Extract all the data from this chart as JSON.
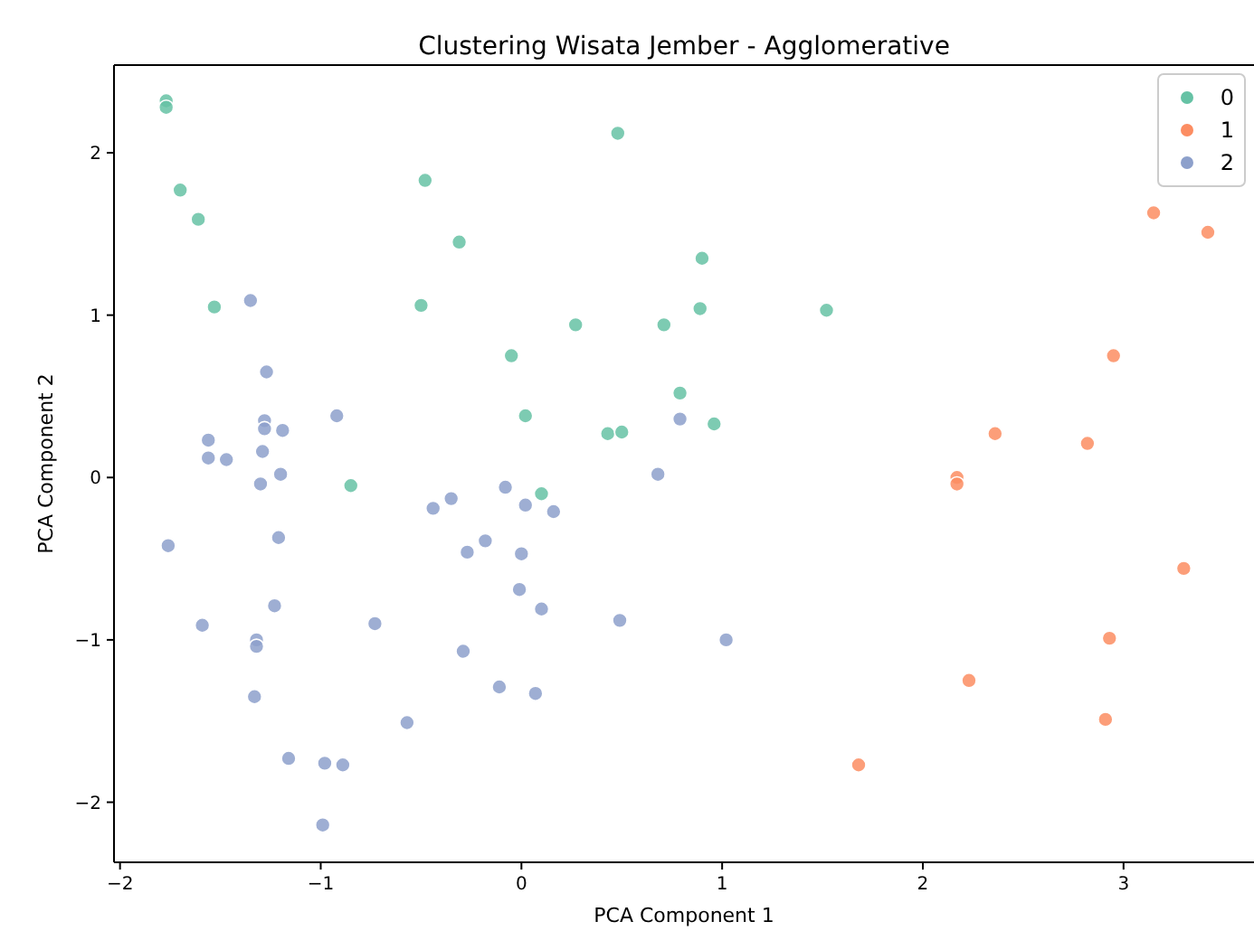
{
  "chart_data": {
    "type": "scatter",
    "title": "Clustering Wisata Jember - Agglomerative",
    "xlabel": "PCA Component 1",
    "ylabel": "PCA Component 2",
    "xlim": [
      -2.03,
      3.65
    ],
    "ylim": [
      -2.37,
      2.54
    ],
    "xticks": [
      -2,
      -1,
      0,
      1,
      2,
      3
    ],
    "yticks": [
      -2,
      -1,
      0,
      1,
      2
    ],
    "grid": false,
    "legend": "top right",
    "marker": "circle",
    "series": [
      {
        "name": "0",
        "color": "#66c2a5",
        "x": [
          -1.77,
          -1.77,
          -1.7,
          -1.61,
          -1.53,
          -0.48,
          -0.31,
          -0.5,
          0.48,
          0.9,
          0.89,
          0.71,
          0.27,
          -0.05,
          0.02,
          0.79,
          0.43,
          0.5,
          0.96,
          1.52,
          -0.85,
          0.1
        ],
        "values": [
          2.32,
          2.28,
          1.77,
          1.59,
          1.05,
          1.83,
          1.45,
          1.06,
          2.12,
          1.35,
          1.04,
          0.94,
          0.94,
          0.75,
          0.38,
          0.52,
          0.27,
          0.28,
          0.33,
          1.03,
          -0.05,
          -0.1
        ]
      },
      {
        "name": "1",
        "color": "#fc8d62",
        "x": [
          3.15,
          3.42,
          2.95,
          2.36,
          2.82,
          2.17,
          2.17,
          3.3,
          2.93,
          2.23,
          2.91,
          1.68
        ],
        "values": [
          1.63,
          1.51,
          0.75,
          0.27,
          0.21,
          0.0,
          -0.04,
          -0.56,
          -0.99,
          -1.25,
          -1.49,
          -1.77
        ]
      },
      {
        "name": "2",
        "color": "#8da0cb",
        "x": [
          -1.35,
          -1.27,
          -0.92,
          -1.28,
          -1.28,
          -1.19,
          -1.56,
          -1.56,
          -1.47,
          -1.29,
          -1.2,
          -1.3,
          -0.08,
          -1.76,
          -1.21,
          -0.44,
          -0.35,
          0.02,
          -0.27,
          -0.18,
          0.0,
          -0.01,
          0.1,
          -1.23,
          -1.59,
          -0.73,
          -1.32,
          -1.32,
          -0.29,
          -1.33,
          -0.11,
          0.07,
          -0.57,
          -1.16,
          -0.98,
          -0.89,
          -0.99,
          0.16,
          0.49,
          1.02,
          0.68,
          0.79
        ],
        "values": [
          1.09,
          0.65,
          0.38,
          0.35,
          0.3,
          0.29,
          0.23,
          0.12,
          0.11,
          0.16,
          0.02,
          -0.04,
          -0.06,
          -0.42,
          -0.37,
          -0.19,
          -0.13,
          -0.17,
          -0.46,
          -0.39,
          -0.47,
          -0.69,
          -0.81,
          -0.79,
          -0.91,
          -0.9,
          -1.0,
          -1.04,
          -1.07,
          -1.35,
          -1.29,
          -1.33,
          -1.51,
          -1.73,
          -1.76,
          -1.77,
          -2.14,
          -0.21,
          -0.88,
          -1.0,
          0.02,
          0.36
        ]
      }
    ]
  }
}
